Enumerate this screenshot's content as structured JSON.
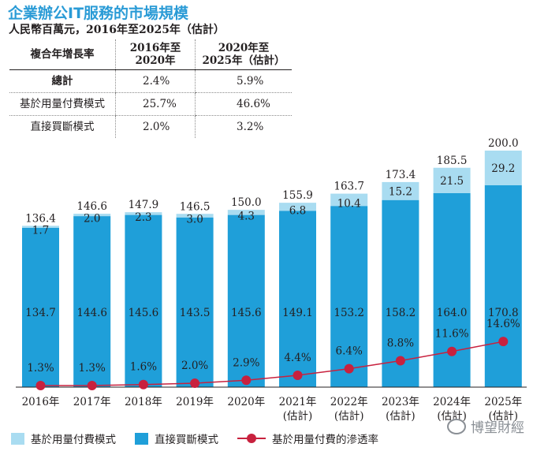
{
  "title": "企業辦公IT服務的市場規模",
  "subtitle": "人民幣百萬元，2016年至2025年（估計）",
  "table": {
    "header": [
      "複合年增長率",
      "2016年至\n2020年",
      "2020年至\n2025年（估計）"
    ],
    "rows": [
      {
        "label": "總計",
        "v1": "2.4%",
        "v2": "5.9%"
      },
      {
        "label": "基於用量付費模式",
        "v1": "25.7%",
        "v2": "46.6%"
      },
      {
        "label": "直接買斷模式",
        "v1": "2.0%",
        "v2": "3.2%"
      }
    ]
  },
  "chart_data": {
    "type": "bar",
    "stacked": true,
    "categories": [
      "2016年",
      "2017年",
      "2018年",
      "2019年",
      "2020年",
      "2021年\n(估計)",
      "2022年\n(估計)",
      "2023年\n(估計)",
      "2024年\n(估計)",
      "2025年\n(估計)"
    ],
    "series": [
      {
        "name": "直接買斷模式",
        "color": "#1f9fd9",
        "values": [
          134.7,
          144.6,
          145.6,
          143.5,
          145.6,
          149.1,
          153.2,
          158.2,
          164.0,
          170.8
        ]
      },
      {
        "name": "基於用量付費模式",
        "color": "#a9dcf1",
        "values": [
          1.7,
          2.0,
          2.3,
          3.0,
          4.3,
          6.8,
          10.4,
          15.2,
          21.5,
          29.2
        ]
      }
    ],
    "totals": [
      "136.4",
      "146.6",
      "147.9",
      "146.5",
      "150.0",
      "155.9",
      "163.7",
      "173.4",
      "185.5",
      "200.0"
    ],
    "line": {
      "name": "基於用量付費的滲透率",
      "color": "#c8213e",
      "values": [
        1.3,
        1.3,
        1.6,
        2.0,
        2.9,
        4.4,
        6.4,
        8.8,
        11.6,
        14.6
      ],
      "labels": [
        "1.3%",
        "1.3%",
        "1.6%",
        "2.0%",
        "2.9%",
        "4.4%",
        "6.4%",
        "8.8%",
        "11.6%",
        "14.6%"
      ]
    },
    "bar_labels_direct": [
      "134.7",
      "144.6",
      "145.6",
      "143.5",
      "145.6",
      "149.1",
      "153.2",
      "158.2",
      "164.0",
      "170.8"
    ],
    "bar_labels_usage": [
      "1.7",
      "2.0",
      "2.3",
      "3.0",
      "4.3",
      "6.8",
      "10.4",
      "15.2",
      "21.5",
      "29.2"
    ],
    "ylim": [
      0,
      200
    ],
    "legend_position": "bottom"
  },
  "legend": {
    "usage": "基於用量付費模式",
    "direct": "直接買斷模式",
    "rate": "基於用量付費的滲透率"
  },
  "watermark": "博望財經"
}
